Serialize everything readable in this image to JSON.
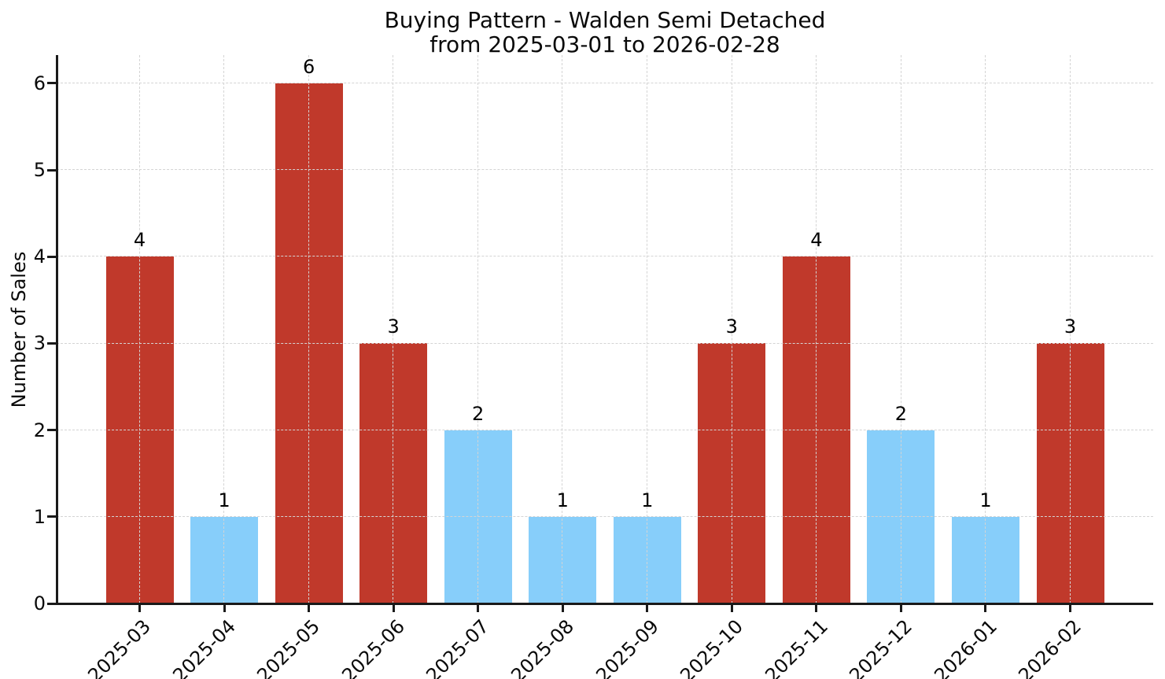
{
  "chart": {
    "title_line1": "Buying Pattern - Walden Semi Detached",
    "title_line2": "from 2025-03-01 to 2026-02-28",
    "ylabel": "Number of Sales"
  },
  "chart_data": {
    "type": "bar",
    "title": "Buying Pattern - Walden Semi Detached\nfrom 2025-03-01 to 2026-02-28",
    "xlabel": "",
    "ylabel": "Number of Sales",
    "categories": [
      "2025-03",
      "2025-04",
      "2025-05",
      "2025-06",
      "2025-07",
      "2025-08",
      "2025-09",
      "2025-10",
      "2025-11",
      "2025-12",
      "2026-01",
      "2026-02"
    ],
    "values": [
      4,
      1,
      6,
      3,
      2,
      1,
      1,
      3,
      4,
      2,
      1,
      3
    ],
    "bar_colors": [
      "#C0392B",
      "#87CEFA",
      "#C0392B",
      "#C0392B",
      "#87CEFA",
      "#87CEFA",
      "#87CEFA",
      "#C0392B",
      "#C0392B",
      "#87CEFA",
      "#87CEFA",
      "#C0392B"
    ],
    "value_labels": [
      "4",
      "1",
      "6",
      "3",
      "2",
      "1",
      "1",
      "3",
      "4",
      "2",
      "1",
      "3"
    ],
    "yticks": [
      0,
      1,
      2,
      3,
      4,
      5,
      6
    ],
    "ylim": [
      0,
      6.325
    ],
    "grid": true,
    "grid_style": "dashed",
    "legend": "none",
    "colors": {
      "bar_red": "#C0392B",
      "bar_blue": "#87CEFA",
      "grid": "#d4d4d4",
      "axis": "#1a1a1a",
      "text": "#0a0a0a",
      "background": "#ffffff"
    }
  }
}
